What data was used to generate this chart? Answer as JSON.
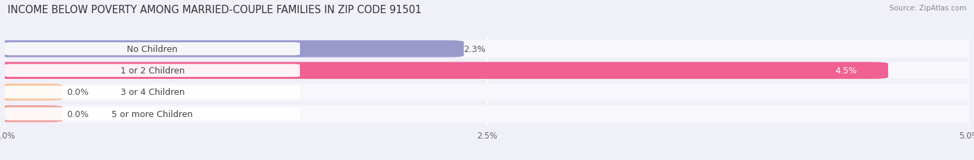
{
  "title": "INCOME BELOW POVERTY AMONG MARRIED-COUPLE FAMILIES IN ZIP CODE 91501",
  "source": "Source: ZipAtlas.com",
  "categories": [
    "No Children",
    "1 or 2 Children",
    "3 or 4 Children",
    "5 or more Children"
  ],
  "values": [
    2.3,
    4.5,
    0.0,
    0.0
  ],
  "bar_colors": [
    "#9999cc",
    "#f06090",
    "#f5c49a",
    "#f0a0a0"
  ],
  "bg_color": "#f0f0f8",
  "bar_bg_color": "#e4e4ee",
  "row_bg_color": "#f8f8fc",
  "xlim_max": 5.0,
  "xticks": [
    0.0,
    2.5,
    5.0
  ],
  "xtick_labels": [
    "0.0%",
    "2.5%",
    "5.0%"
  ],
  "title_fontsize": 10.5,
  "label_fontsize": 9,
  "value_fontsize": 9,
  "value_labels": [
    "2.3%",
    "4.5%",
    "0.0%",
    "0.0%"
  ],
  "value_white": [
    false,
    true,
    false,
    false
  ]
}
